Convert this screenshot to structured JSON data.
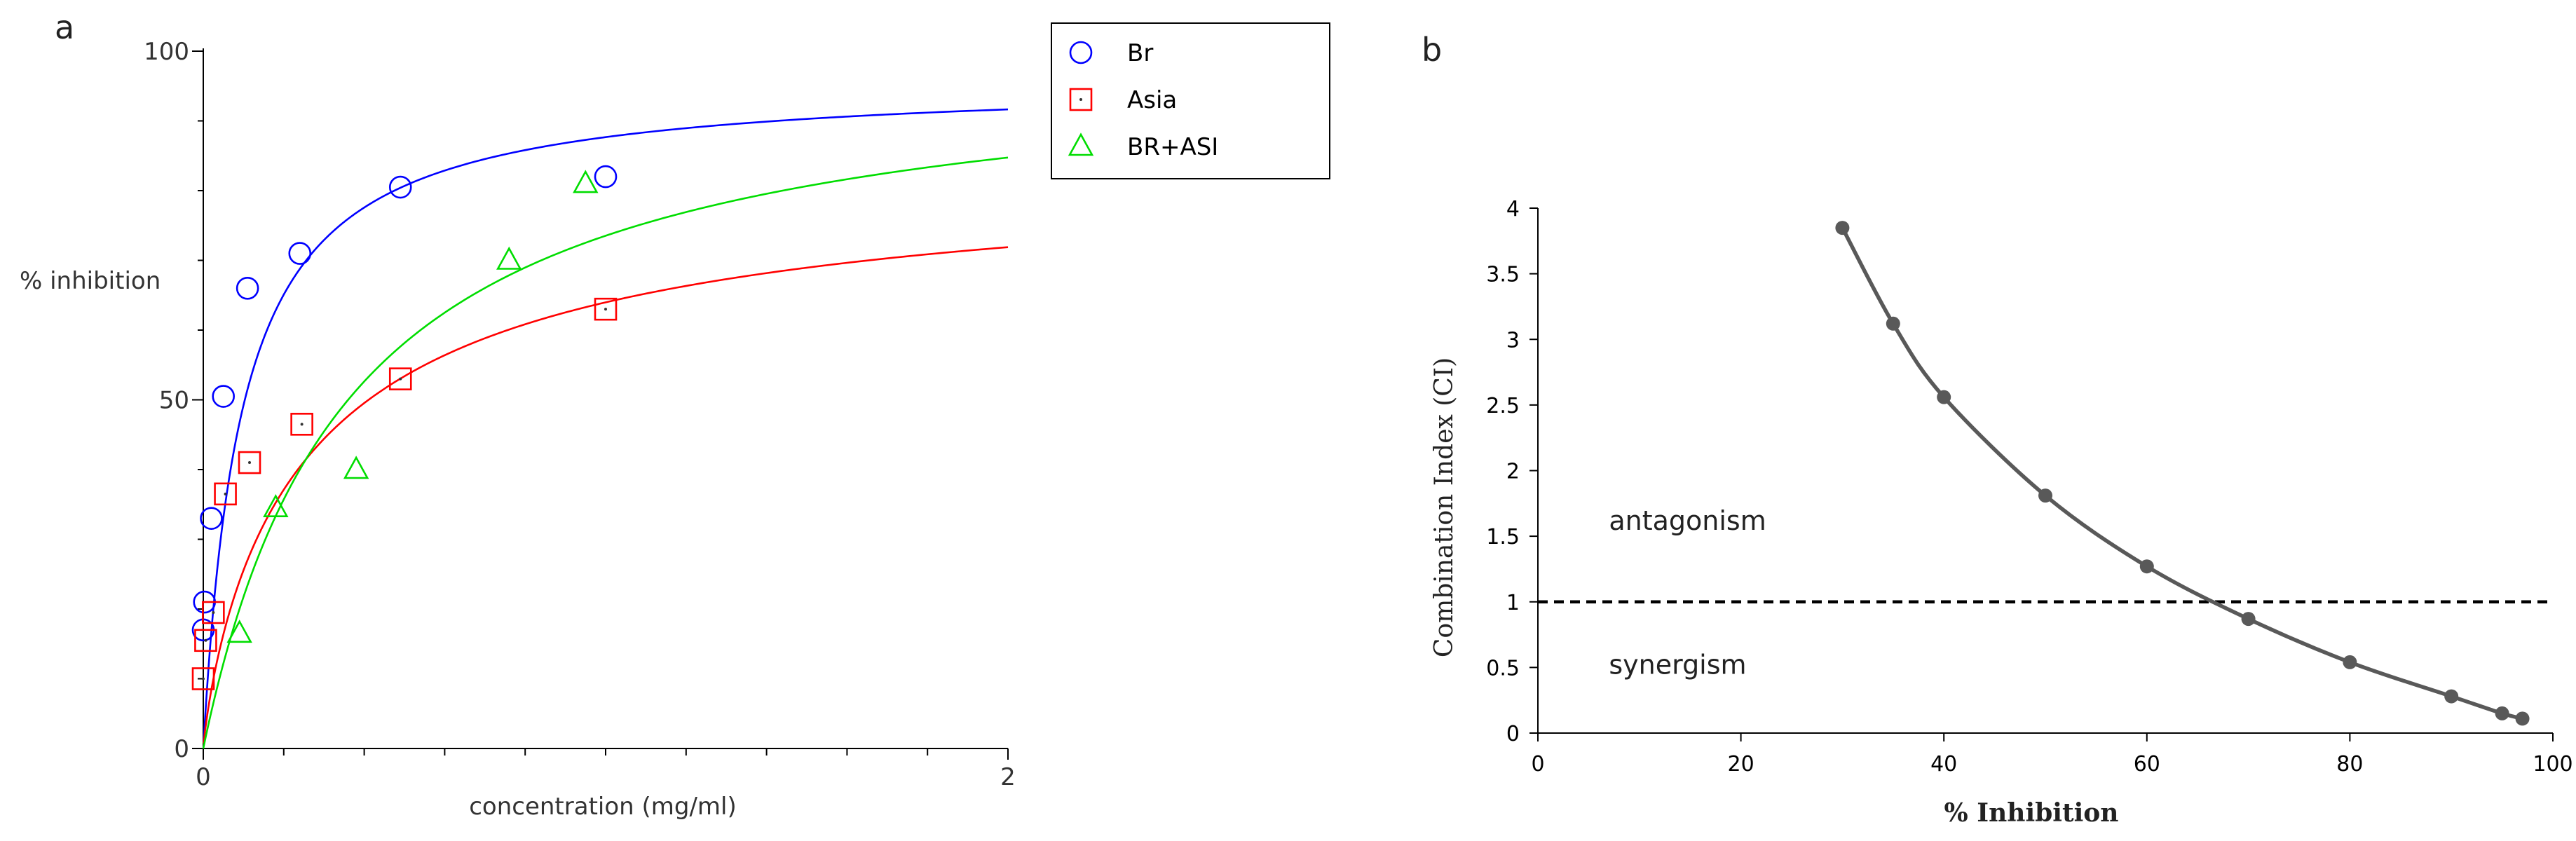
{
  "panels": {
    "a": "a",
    "b": "b"
  },
  "colors": {
    "br": "#0000ff",
    "asia": "#ff0000",
    "combo": "#00dd00",
    "ci": "#595959",
    "axis": "#000000"
  },
  "chart_data": [
    {
      "type": "scatter",
      "title": "",
      "xlabel": "concentration (mg/ml)",
      "ylabel": "% inhibition",
      "xlim": [
        0,
        2
      ],
      "ylim": [
        0,
        100
      ],
      "x_tick_labels": [
        "0",
        "2"
      ],
      "y_tick_labels": [
        "0",
        "50",
        "100"
      ],
      "legend_position": "top-right",
      "series": [
        {
          "name": "Br",
          "marker": "circle",
          "color": "#0000ff",
          "points": [
            [
              0,
              17
            ],
            [
              0.003,
              21
            ],
            [
              0.02,
              33
            ],
            [
              0.05,
              50.5
            ],
            [
              0.11,
              66
            ],
            [
              0.24,
              71
            ],
            [
              0.49,
              80.5
            ],
            [
              1.0,
              82
            ]
          ],
          "fit": {
            "model": "hill",
            "max": 96,
            "ec50": 0.095,
            "hill": 1.0,
            "x_start": 0.001
          }
        },
        {
          "name": "Asia",
          "marker": "square",
          "color": "#ff0000",
          "points": [
            [
              0,
              10
            ],
            [
              0.006,
              15.5
            ],
            [
              0.025,
              19.5
            ],
            [
              0.055,
              36.5
            ],
            [
              0.115,
              41
            ],
            [
              0.245,
              46.5
            ],
            [
              0.49,
              53
            ],
            [
              1.0,
              63
            ]
          ],
          "fit": {
            "model": "hill",
            "max": 85,
            "ec50": 0.27,
            "hill": 0.85,
            "x_start": 0.001
          }
        },
        {
          "name": "BR+ASI",
          "marker": "triangle",
          "color": "#00dd00",
          "points": [
            [
              0.09,
              16.5
            ],
            [
              0.18,
              34.5
            ],
            [
              0.38,
              40
            ],
            [
              0.76,
              70
            ],
            [
              0.95,
              81
            ]
          ],
          "fit": {
            "model": "hill",
            "max": 100,
            "ec50": 0.36,
            "hill": 1.0,
            "x_start": 0.0
          }
        }
      ]
    },
    {
      "type": "line",
      "title": "",
      "xlabel": "% Inhibition",
      "ylabel": "Combination Index (CI)",
      "xlim": [
        0,
        100
      ],
      "ylim": [
        0,
        4
      ],
      "x_ticks": [
        0,
        20,
        40,
        60,
        80,
        100
      ],
      "y_ticks": [
        0,
        0.5,
        1,
        1.5,
        2,
        2.5,
        3,
        3.5,
        4
      ],
      "x_tick_labels": [
        "0",
        "20",
        "40",
        "60",
        "80",
        "100"
      ],
      "y_tick_labels": [
        "0",
        "0.5",
        "1",
        "1.5",
        "2",
        "2.5",
        "3",
        "3.5",
        "4"
      ],
      "series": [
        {
          "name": "CI",
          "color": "#595959",
          "x": [
            30,
            35,
            40,
            50,
            60,
            70,
            80,
            90,
            95,
            97
          ],
          "y": [
            3.85,
            3.12,
            2.56,
            1.81,
            1.27,
            0.87,
            0.54,
            0.28,
            0.15,
            0.11
          ]
        }
      ],
      "reference_line": {
        "y": 1,
        "style": "dashed"
      },
      "annotations": [
        {
          "text": "antagonism",
          "x": 7,
          "y": 1.55
        },
        {
          "text": "synergism",
          "x": 7,
          "y": 0.45
        }
      ]
    }
  ]
}
